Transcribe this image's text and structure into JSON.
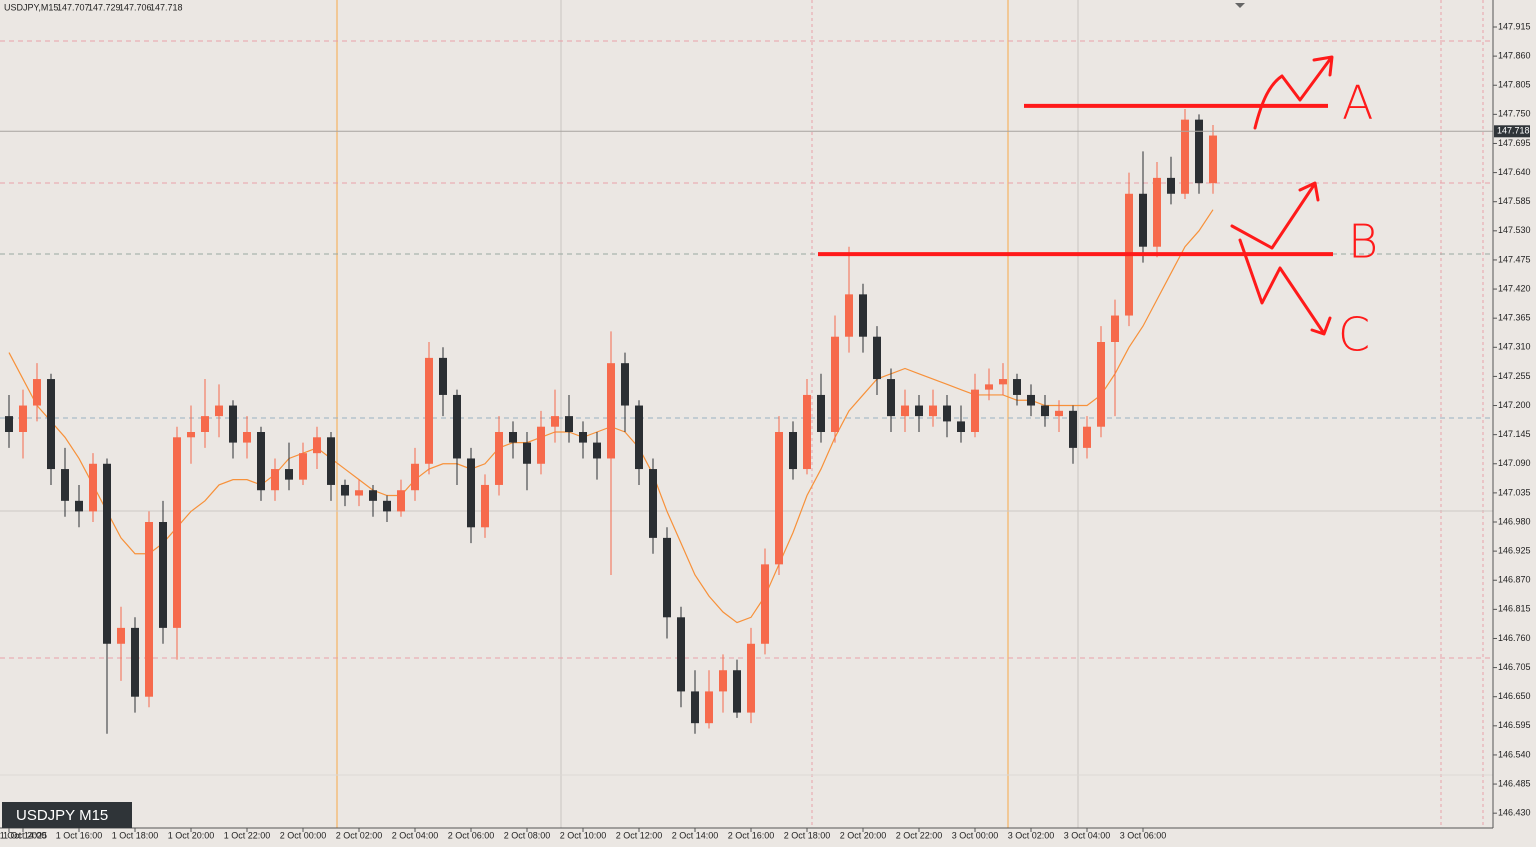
{
  "chart_data": {
    "type": "candlestick",
    "symbol_label": "USDJPY M15",
    "header": {
      "symbol": "USDJPY,M15",
      "quote": [
        147.707,
        147.729,
        147.706,
        147.718
      ]
    },
    "bid": 147.718,
    "ylim": [
      146.402,
      147.966
    ],
    "yticks": [
      147.915,
      {
        "value": 147.86,
        "label": "147.860"
      },
      147.805,
      {
        "value": 147.75,
        "label": "147.750"
      },
      147.695,
      {
        "value": 147.64,
        "label": "147.640"
      },
      147.585,
      {
        "value": 147.53,
        "label": "147.530"
      },
      147.475,
      {
        "value": 147.42,
        "label": "147.420"
      },
      147.365,
      {
        "value": 147.31,
        "label": "147.310"
      },
      147.255,
      {
        "value": 147.2,
        "label": "147.200"
      },
      147.145,
      {
        "value": 147.09,
        "label": "147.090"
      },
      147.035,
      {
        "value": 146.98,
        "label": "146.980"
      },
      146.925,
      {
        "value": 146.87,
        "label": "146.870"
      },
      146.815,
      {
        "value": 146.76,
        "label": "146.760"
      },
      146.705,
      {
        "value": 146.65,
        "label": "146.650"
      },
      146.595,
      {
        "value": 146.54,
        "label": "146.540"
      },
      146.485,
      {
        "value": 146.43,
        "label": "146.430"
      }
    ],
    "categories": [
      "1 Oct 2025",
      "1 Oct 14:00",
      null,
      null,
      null,
      "1 Oct 16:00",
      null,
      null,
      null,
      "1 Oct 18:00",
      null,
      null,
      null,
      "1 Oct 20:00",
      null,
      null,
      null,
      "1 Oct 22:00",
      null,
      null,
      null,
      "2 Oct 00:00",
      null,
      null,
      null,
      "2 Oct 02:00",
      null,
      null,
      null,
      "2 Oct 04:00",
      null,
      null,
      null,
      "2 Oct 06:00",
      null,
      null,
      null,
      "2 Oct 08:00",
      null,
      null,
      null,
      "2 Oct 10:00",
      null,
      null,
      null,
      "2 Oct 12:00",
      null,
      null,
      null,
      "2 Oct 14:00",
      null,
      null,
      null,
      "2 Oct 16:00",
      null,
      null,
      null,
      "2 Oct 18:00",
      null,
      null,
      null,
      "2 Oct 20:00",
      null,
      null,
      null,
      "2 Oct 22:00",
      null,
      null,
      null,
      "3 Oct 00:00",
      null,
      null,
      null,
      "3 Oct 02:00",
      null,
      null,
      null,
      "3 Oct 04:00",
      null,
      null,
      null,
      "3 Oct 06:00",
      null
    ],
    "bull_color": "#f66a4c",
    "bear_color": "#2b2f33",
    "ohlc": [
      [
        147.18,
        147.22,
        147.12,
        147.15
      ],
      [
        147.15,
        147.23,
        147.1,
        147.2
      ],
      [
        147.2,
        147.28,
        147.17,
        147.25
      ],
      [
        147.25,
        147.26,
        147.05,
        147.08
      ],
      [
        147.08,
        147.12,
        146.99,
        147.02
      ],
      [
        147.02,
        147.05,
        146.97,
        147.0
      ],
      [
        147.0,
        147.11,
        146.98,
        147.09
      ],
      [
        147.09,
        147.1,
        146.58,
        146.75
      ],
      [
        146.75,
        146.82,
        146.68,
        146.78
      ],
      [
        146.78,
        146.8,
        146.62,
        146.65
      ],
      [
        146.65,
        147.0,
        146.63,
        146.98
      ],
      [
        146.98,
        147.02,
        146.75,
        146.78
      ],
      [
        146.78,
        147.16,
        146.72,
        147.14
      ],
      [
        147.14,
        147.2,
        147.09,
        147.15
      ],
      [
        147.15,
        147.25,
        147.12,
        147.18
      ],
      [
        147.18,
        147.24,
        147.14,
        147.2
      ],
      [
        147.2,
        147.21,
        147.1,
        147.13
      ],
      [
        147.13,
        147.18,
        147.1,
        147.15
      ],
      [
        147.15,
        147.16,
        147.02,
        147.04
      ],
      [
        147.04,
        147.1,
        147.02,
        147.08
      ],
      [
        147.08,
        147.13,
        147.04,
        147.06
      ],
      [
        147.06,
        147.13,
        147.05,
        147.11
      ],
      [
        147.11,
        147.16,
        147.08,
        147.14
      ],
      [
        147.14,
        147.15,
        147.02,
        147.05
      ],
      [
        147.05,
        147.06,
        147.01,
        147.03
      ],
      [
        147.03,
        147.06,
        147.01,
        147.04
      ],
      [
        147.04,
        147.05,
        146.99,
        147.02
      ],
      [
        147.02,
        147.03,
        146.98,
        147.0
      ],
      [
        147.0,
        147.06,
        146.99,
        147.04
      ],
      [
        147.04,
        147.12,
        147.02,
        147.09
      ],
      [
        147.09,
        147.32,
        147.07,
        147.29
      ],
      [
        147.29,
        147.31,
        147.18,
        147.22
      ],
      [
        147.22,
        147.23,
        147.05,
        147.1
      ],
      [
        147.1,
        147.12,
        146.94,
        146.97
      ],
      [
        146.97,
        147.07,
        146.95,
        147.05
      ],
      [
        147.05,
        147.18,
        147.03,
        147.15
      ],
      [
        147.15,
        147.17,
        147.1,
        147.13
      ],
      [
        147.13,
        147.15,
        147.04,
        147.09
      ],
      [
        147.09,
        147.19,
        147.07,
        147.16
      ],
      [
        147.16,
        147.23,
        147.13,
        147.18
      ],
      [
        147.18,
        147.22,
        147.13,
        147.15
      ],
      [
        147.15,
        147.17,
        147.1,
        147.13
      ],
      [
        147.13,
        147.15,
        147.06,
        147.1
      ],
      [
        147.1,
        147.34,
        146.88,
        147.28
      ],
      [
        147.28,
        147.3,
        147.15,
        147.2
      ],
      [
        147.2,
        147.21,
        147.05,
        147.08
      ],
      [
        147.08,
        147.1,
        146.92,
        146.95
      ],
      [
        146.95,
        146.97,
        146.76,
        146.8
      ],
      [
        146.8,
        146.82,
        146.63,
        146.66
      ],
      [
        146.66,
        146.7,
        146.58,
        146.6
      ],
      [
        146.6,
        146.7,
        146.59,
        146.66
      ],
      [
        146.66,
        146.73,
        146.62,
        146.7
      ],
      [
        146.7,
        146.72,
        146.61,
        146.62
      ],
      [
        146.62,
        146.78,
        146.6,
        146.75
      ],
      [
        146.75,
        146.93,
        146.73,
        146.9
      ],
      [
        146.9,
        147.18,
        146.88,
        147.15
      ],
      [
        147.15,
        147.17,
        147.06,
        147.08
      ],
      [
        147.08,
        147.25,
        147.07,
        147.22
      ],
      [
        147.22,
        147.26,
        147.13,
        147.15
      ],
      [
        147.15,
        147.37,
        147.13,
        147.33
      ],
      [
        147.33,
        147.5,
        147.3,
        147.41
      ],
      [
        147.41,
        147.43,
        147.3,
        147.33
      ],
      [
        147.33,
        147.35,
        147.22,
        147.25
      ],
      [
        147.25,
        147.27,
        147.15,
        147.18
      ],
      [
        147.18,
        147.23,
        147.15,
        147.2
      ],
      [
        147.2,
        147.22,
        147.15,
        147.18
      ],
      [
        147.18,
        147.23,
        147.16,
        147.2
      ],
      [
        147.2,
        147.22,
        147.14,
        147.17
      ],
      [
        147.17,
        147.2,
        147.13,
        147.15
      ],
      [
        147.15,
        147.26,
        147.14,
        147.23
      ],
      [
        147.23,
        147.27,
        147.21,
        147.24
      ],
      [
        147.24,
        147.28,
        147.22,
        147.25
      ],
      [
        147.25,
        147.26,
        147.2,
        147.22
      ],
      [
        147.22,
        147.24,
        147.18,
        147.2
      ],
      [
        147.2,
        147.22,
        147.16,
        147.18
      ],
      [
        147.18,
        147.21,
        147.15,
        147.19
      ],
      [
        147.19,
        147.2,
        147.09,
        147.12
      ],
      [
        147.12,
        147.18,
        147.1,
        147.16
      ],
      [
        147.16,
        147.35,
        147.14,
        147.32
      ],
      [
        147.32,
        147.4,
        147.18,
        147.37
      ],
      [
        147.37,
        147.64,
        147.35,
        147.6
      ],
      [
        147.6,
        147.68,
        147.47,
        147.5
      ],
      [
        147.5,
        147.66,
        147.48,
        147.63
      ],
      [
        147.63,
        147.67,
        147.58,
        147.6
      ],
      [
        147.6,
        147.76,
        147.59,
        147.74
      ],
      [
        147.74,
        147.75,
        147.6,
        147.62
      ],
      [
        147.62,
        147.73,
        147.6,
        147.71
      ]
    ],
    "ma": {
      "color": "#f7913a",
      "values": [
        147.3,
        147.25,
        147.2,
        147.17,
        147.14,
        147.1,
        147.05,
        147.0,
        146.95,
        146.92,
        146.92,
        146.94,
        146.97,
        147.0,
        147.02,
        147.05,
        147.06,
        147.06,
        147.05,
        147.07,
        147.1,
        147.11,
        147.12,
        147.1,
        147.08,
        147.06,
        147.04,
        147.03,
        147.03,
        147.06,
        147.08,
        147.09,
        147.09,
        147.08,
        147.09,
        147.12,
        147.13,
        147.13,
        147.14,
        147.15,
        147.15,
        147.14,
        147.15,
        147.16,
        147.15,
        147.12,
        147.07,
        147.0,
        146.94,
        146.88,
        146.84,
        146.81,
        146.79,
        146.8,
        146.84,
        146.9,
        146.96,
        147.03,
        147.08,
        147.14,
        147.19,
        147.22,
        147.25,
        147.26,
        147.27,
        147.26,
        147.25,
        147.24,
        147.23,
        147.22,
        147.22,
        147.22,
        147.21,
        147.21,
        147.2,
        147.2,
        147.2,
        147.2,
        147.22,
        147.26,
        147.31,
        147.35,
        147.4,
        147.45,
        147.5,
        147.53,
        147.57
      ]
    },
    "annotations": [
      {
        "label": "A",
        "level": 147.766
      },
      {
        "label": "B",
        "level": 147.486
      },
      {
        "label": "C"
      }
    ],
    "annotation_color": "#ff1a1a"
  }
}
